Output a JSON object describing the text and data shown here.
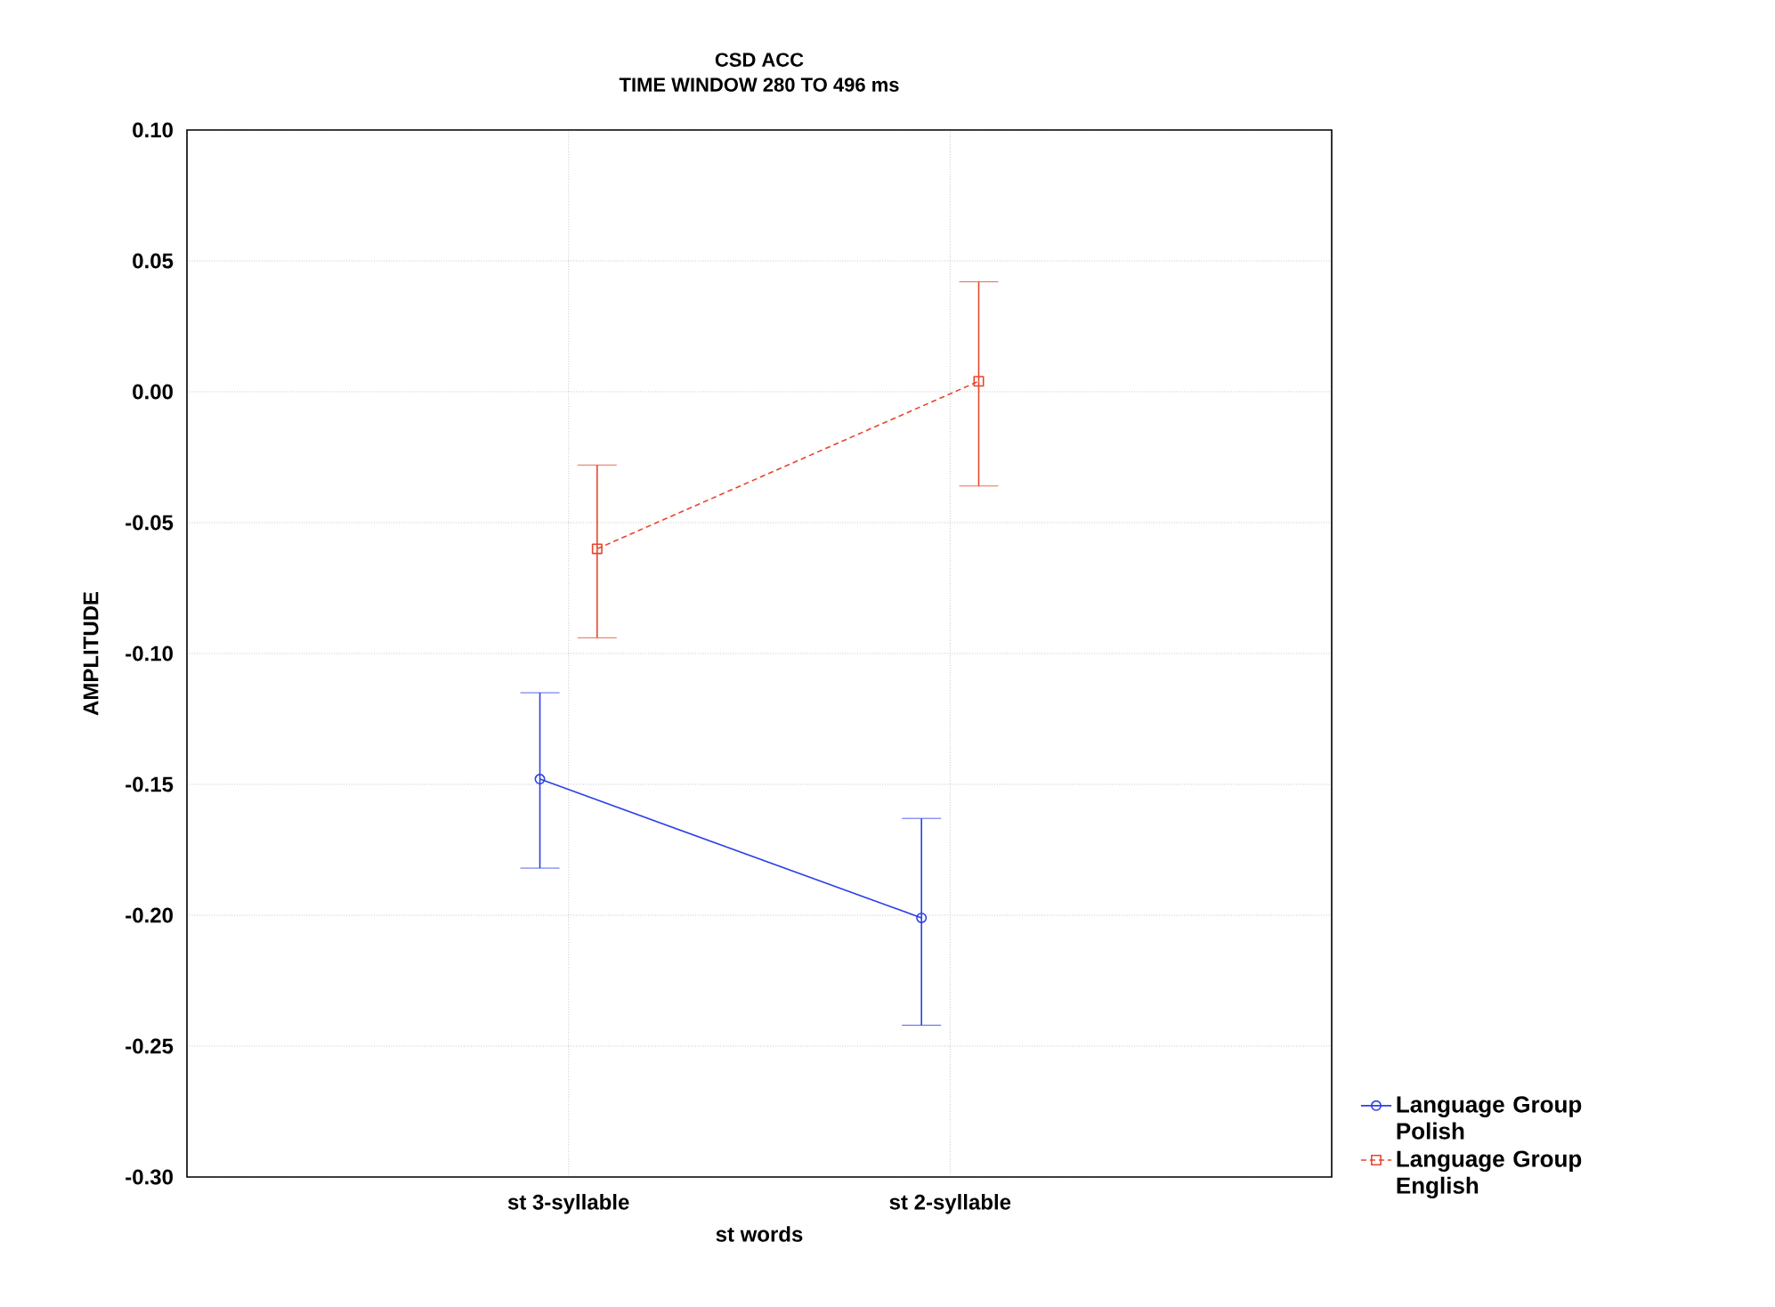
{
  "chart_data": {
    "type": "line",
    "title": "CSD ACC",
    "subtitle": "TIME WINDOW 280 TO 496 ms",
    "xlabel": "st words",
    "ylabel": "AMPLITUDE",
    "categories": [
      "st 3-syllable",
      "st 2-syllable"
    ],
    "series": [
      {
        "name": "Language Group Polish",
        "color": "#2b3fe8",
        "values": [
          -0.148,
          -0.201
        ],
        "errors": [
          [
            -0.182,
            -0.115
          ],
          [
            -0.242,
            -0.163
          ]
        ],
        "marker": "circle",
        "line_style": "solid"
      },
      {
        "name": "Language Group English",
        "color": "#e8452c",
        "values": [
          -0.06,
          0.004
        ],
        "errors": [
          [
            -0.094,
            -0.028
          ],
          [
            -0.036,
            0.042
          ]
        ],
        "marker": "square",
        "line_style": "dashed"
      }
    ],
    "ylim": [
      -0.3,
      0.1
    ],
    "yticks": [
      {
        "value": -0.3,
        "label": "-0.30"
      },
      {
        "value": -0.25,
        "label": "-0.25"
      },
      {
        "value": -0.2,
        "label": "-0.20"
      },
      {
        "value": -0.15,
        "label": "-0.15"
      },
      {
        "value": -0.1,
        "label": "-0.10"
      },
      {
        "value": -0.05,
        "label": "-0.05"
      },
      {
        "value": 0,
        "label": "0.00"
      },
      {
        "value": 0.05,
        "label": "0.05"
      },
      {
        "value": 0.1,
        "label": "0.10"
      }
    ],
    "grid": true,
    "legend": "bottom right"
  }
}
